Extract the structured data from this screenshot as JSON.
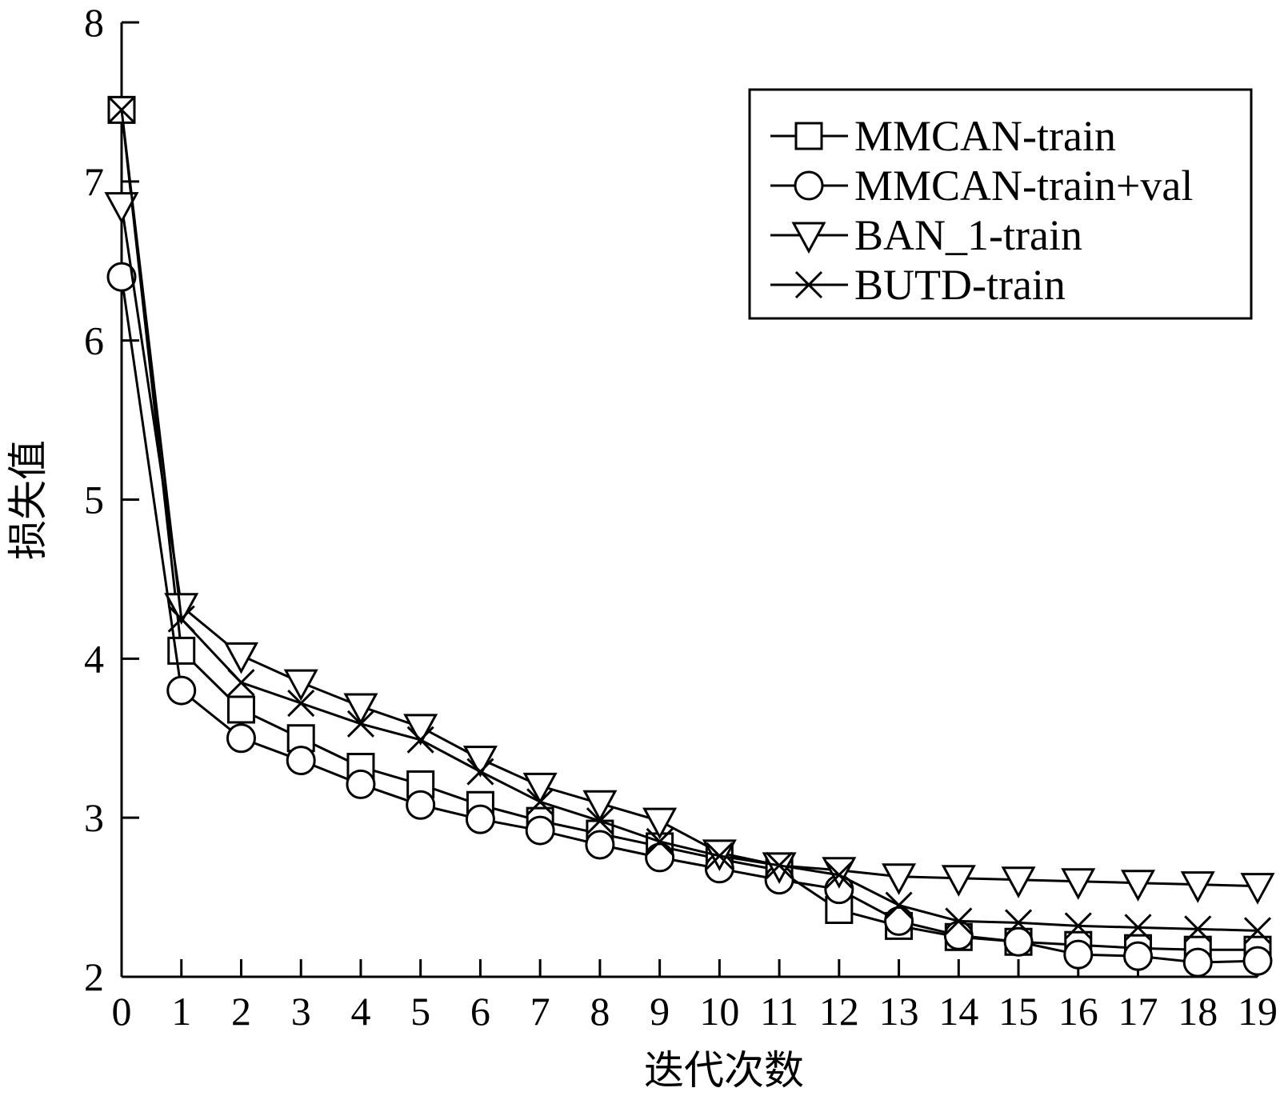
{
  "chart_data": {
    "type": "line",
    "xlabel": "迭代次数",
    "ylabel": "损失值",
    "xlim": [
      0,
      19
    ],
    "ylim": [
      2,
      8
    ],
    "x_ticks": [
      "0",
      "1",
      "2",
      "3",
      "4",
      "5",
      "6",
      "7",
      "8",
      "9",
      "10",
      "11",
      "12",
      "13",
      "14",
      "15",
      "16",
      "17",
      "18",
      "19"
    ],
    "y_ticks": [
      "2",
      "3",
      "4",
      "5",
      "6",
      "7",
      "8"
    ],
    "grid": false,
    "legend_position": "top-right",
    "x": [
      0,
      1,
      2,
      3,
      4,
      5,
      6,
      7,
      8,
      9,
      10,
      11,
      12,
      13,
      14,
      15,
      16,
      17,
      18,
      19
    ],
    "series": [
      {
        "name": "MMCAN-train",
        "marker": "square",
        "values": [
          7.45,
          4.05,
          3.68,
          3.5,
          3.32,
          3.21,
          3.08,
          2.98,
          2.9,
          2.82,
          2.74,
          2.67,
          2.42,
          2.32,
          2.25,
          2.22,
          2.2,
          2.18,
          2.17,
          2.17
        ]
      },
      {
        "name": "MMCAN-train+val",
        "marker": "circle",
        "values": [
          6.4,
          3.8,
          3.5,
          3.36,
          3.21,
          3.08,
          2.99,
          2.92,
          2.83,
          2.75,
          2.68,
          2.61,
          2.55,
          2.35,
          2.26,
          2.22,
          2.14,
          2.13,
          2.09,
          2.1
        ]
      },
      {
        "name": "BAN_1-train",
        "marker": "triangle-down",
        "values": [
          6.85,
          4.33,
          4.02,
          3.85,
          3.7,
          3.57,
          3.37,
          3.2,
          3.09,
          2.98,
          2.78,
          2.7,
          2.67,
          2.63,
          2.62,
          2.61,
          2.6,
          2.59,
          2.58,
          2.57
        ]
      },
      {
        "name": "BUTD-train",
        "marker": "x",
        "values": [
          7.45,
          4.25,
          3.85,
          3.72,
          3.59,
          3.49,
          3.29,
          3.1,
          2.98,
          2.85,
          2.76,
          2.7,
          2.64,
          2.45,
          2.35,
          2.34,
          2.32,
          2.31,
          2.3,
          2.29
        ]
      }
    ]
  }
}
